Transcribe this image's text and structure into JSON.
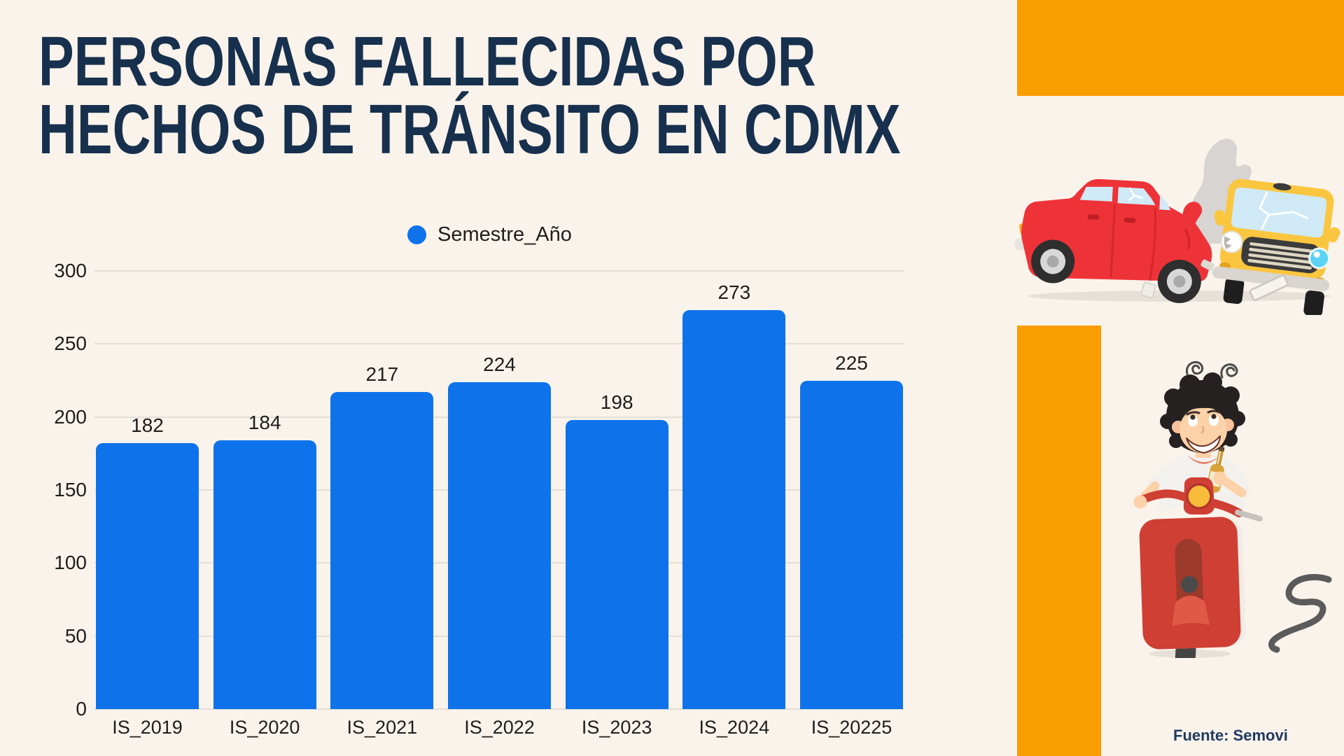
{
  "header": {
    "title_line1": "PERSONAS FALLECIDAS POR",
    "title_line2": "HECHOS DE TRÁNSITO EN CDMX"
  },
  "legend": {
    "label": "Semestre_Año"
  },
  "source": {
    "text": "Fuente: Semovi"
  },
  "illustrations": {
    "top_right": "car-crash-illustration",
    "bottom_right": "drunk-scooter-rider-illustration"
  },
  "colors": {
    "background": "#faf3eb",
    "accent_orange": "#fb9e04",
    "bar_blue": "#0e73eb",
    "title_navy": "#17304d",
    "gridline": "#e3dfd8",
    "text_dark": "#1e1e1e",
    "source_navy": "#1e3a5f"
  },
  "chart_data": {
    "type": "bar",
    "title": "",
    "categories": [
      "IS_2019",
      "IS_2020",
      "IS_2021",
      "IS_2022",
      "IS_2023",
      "IS_2024",
      "IS_20225"
    ],
    "values": [
      182,
      184,
      217,
      224,
      198,
      273,
      225
    ],
    "series_label": "Semestre_Año",
    "xlabel": "",
    "ylabel": "",
    "ylim": [
      0,
      300
    ],
    "yticks": [
      0,
      50,
      100,
      150,
      200,
      250,
      300
    ],
    "grid": true,
    "value_labels": true,
    "legend_position": "top-center"
  }
}
